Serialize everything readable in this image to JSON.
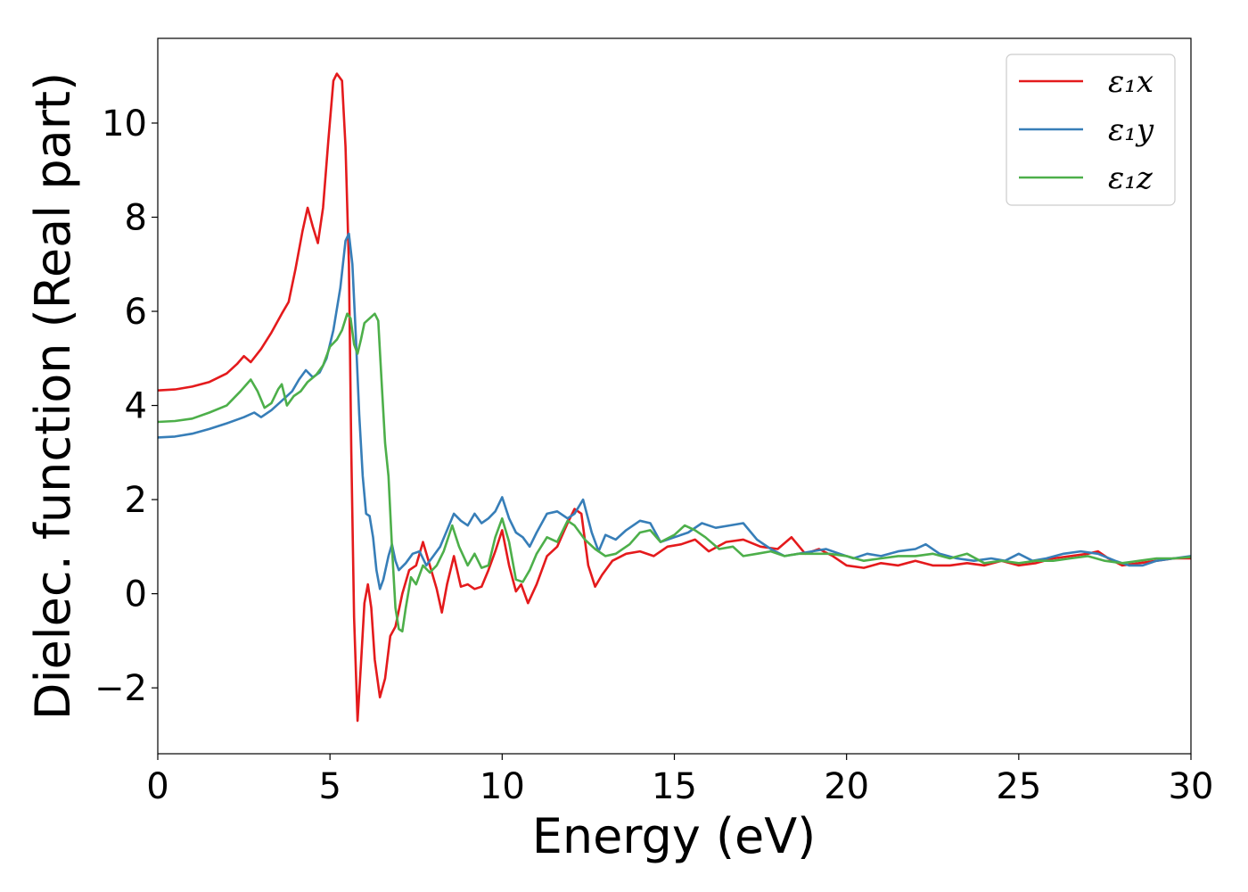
{
  "chart_data": {
    "type": "line",
    "xlabel": "Energy (eV)",
    "ylabel": "Dielec. function (Real part)",
    "xlim": [
      0,
      30
    ],
    "ylim": [
      -3.4,
      11.8
    ],
    "xticks": [
      0,
      5,
      10,
      15,
      20,
      25,
      30
    ],
    "xtick_labels": [
      "0",
      "5",
      "10",
      "15",
      "20",
      "25",
      "30"
    ],
    "yticks": [
      -2,
      0,
      2,
      4,
      6,
      8,
      10
    ],
    "ytick_labels": [
      "−2",
      "0",
      "2",
      "4",
      "6",
      "8",
      "10"
    ],
    "grid": false,
    "legend_position": "top-right",
    "series": [
      {
        "name": "ε₁x",
        "color": "#e41a1c",
        "points": [
          [
            0,
            4.32
          ],
          [
            0.5,
            4.34
          ],
          [
            1,
            4.4
          ],
          [
            1.5,
            4.5
          ],
          [
            2,
            4.68
          ],
          [
            2.3,
            4.88
          ],
          [
            2.5,
            5.05
          ],
          [
            2.7,
            4.92
          ],
          [
            3,
            5.2
          ],
          [
            3.3,
            5.55
          ],
          [
            3.6,
            5.95
          ],
          [
            3.8,
            6.2
          ],
          [
            4,
            6.9
          ],
          [
            4.2,
            7.7
          ],
          [
            4.35,
            8.2
          ],
          [
            4.5,
            7.8
          ],
          [
            4.65,
            7.45
          ],
          [
            4.8,
            8.2
          ],
          [
            4.95,
            9.6
          ],
          [
            5.1,
            10.9
          ],
          [
            5.2,
            11.05
          ],
          [
            5.35,
            10.9
          ],
          [
            5.45,
            9.5
          ],
          [
            5.55,
            7.0
          ],
          [
            5.62,
            3.0
          ],
          [
            5.7,
            -0.5
          ],
          [
            5.8,
            -2.7
          ],
          [
            5.9,
            -1.5
          ],
          [
            6.0,
            -0.2
          ],
          [
            6.1,
            0.2
          ],
          [
            6.2,
            -0.3
          ],
          [
            6.3,
            -1.4
          ],
          [
            6.45,
            -2.2
          ],
          [
            6.6,
            -1.8
          ],
          [
            6.75,
            -0.9
          ],
          [
            6.9,
            -0.7
          ],
          [
            7.1,
            0.0
          ],
          [
            7.3,
            0.5
          ],
          [
            7.5,
            0.6
          ],
          [
            7.7,
            1.1
          ],
          [
            7.9,
            0.6
          ],
          [
            8.1,
            0.1
          ],
          [
            8.25,
            -0.4
          ],
          [
            8.4,
            0.2
          ],
          [
            8.6,
            0.8
          ],
          [
            8.8,
            0.15
          ],
          [
            9.0,
            0.2
          ],
          [
            9.2,
            0.1
          ],
          [
            9.4,
            0.15
          ],
          [
            9.6,
            0.5
          ],
          [
            9.8,
            0.9
          ],
          [
            10.0,
            1.35
          ],
          [
            10.2,
            0.6
          ],
          [
            10.4,
            0.05
          ],
          [
            10.55,
            0.2
          ],
          [
            10.75,
            -0.2
          ],
          [
            11.0,
            0.2
          ],
          [
            11.3,
            0.8
          ],
          [
            11.6,
            1.0
          ],
          [
            11.9,
            1.5
          ],
          [
            12.1,
            1.8
          ],
          [
            12.3,
            1.7
          ],
          [
            12.5,
            0.6
          ],
          [
            12.7,
            0.15
          ],
          [
            12.9,
            0.4
          ],
          [
            13.2,
            0.7
          ],
          [
            13.6,
            0.85
          ],
          [
            14.0,
            0.9
          ],
          [
            14.4,
            0.8
          ],
          [
            14.8,
            1.0
          ],
          [
            15.2,
            1.05
          ],
          [
            15.6,
            1.15
          ],
          [
            16.0,
            0.9
          ],
          [
            16.5,
            1.1
          ],
          [
            17.0,
            1.15
          ],
          [
            17.5,
            1.0
          ],
          [
            18.0,
            0.95
          ],
          [
            18.4,
            1.2
          ],
          [
            18.8,
            0.85
          ],
          [
            19.2,
            0.95
          ],
          [
            19.6,
            0.8
          ],
          [
            20.0,
            0.6
          ],
          [
            20.5,
            0.55
          ],
          [
            21.0,
            0.65
          ],
          [
            21.5,
            0.6
          ],
          [
            22.0,
            0.7
          ],
          [
            22.5,
            0.6
          ],
          [
            23.0,
            0.6
          ],
          [
            23.5,
            0.65
          ],
          [
            24.0,
            0.6
          ],
          [
            24.5,
            0.7
          ],
          [
            25.0,
            0.6
          ],
          [
            25.5,
            0.65
          ],
          [
            26.0,
            0.75
          ],
          [
            26.5,
            0.8
          ],
          [
            27.0,
            0.85
          ],
          [
            27.3,
            0.9
          ],
          [
            27.6,
            0.75
          ],
          [
            28.0,
            0.6
          ],
          [
            28.5,
            0.65
          ],
          [
            29.0,
            0.7
          ],
          [
            29.5,
            0.75
          ],
          [
            30.0,
            0.75
          ]
        ]
      },
      {
        "name": "ε₁y",
        "color": "#377eb8",
        "points": [
          [
            0,
            3.32
          ],
          [
            0.5,
            3.34
          ],
          [
            1,
            3.4
          ],
          [
            1.5,
            3.5
          ],
          [
            2,
            3.62
          ],
          [
            2.5,
            3.75
          ],
          [
            2.8,
            3.85
          ],
          [
            3.0,
            3.75
          ],
          [
            3.3,
            3.9
          ],
          [
            3.6,
            4.1
          ],
          [
            3.9,
            4.3
          ],
          [
            4.1,
            4.55
          ],
          [
            4.3,
            4.75
          ],
          [
            4.5,
            4.6
          ],
          [
            4.7,
            4.7
          ],
          [
            4.9,
            5.0
          ],
          [
            5.1,
            5.6
          ],
          [
            5.3,
            6.5
          ],
          [
            5.45,
            7.5
          ],
          [
            5.55,
            7.65
          ],
          [
            5.65,
            7.0
          ],
          [
            5.75,
            5.5
          ],
          [
            5.85,
            3.8
          ],
          [
            5.95,
            2.5
          ],
          [
            6.05,
            1.7
          ],
          [
            6.15,
            1.65
          ],
          [
            6.25,
            1.2
          ],
          [
            6.35,
            0.5
          ],
          [
            6.45,
            0.1
          ],
          [
            6.55,
            0.3
          ],
          [
            6.7,
            0.8
          ],
          [
            6.8,
            1.05
          ],
          [
            6.9,
            0.7
          ],
          [
            7.0,
            0.5
          ],
          [
            7.2,
            0.65
          ],
          [
            7.4,
            0.85
          ],
          [
            7.6,
            0.9
          ],
          [
            7.8,
            0.6
          ],
          [
            8.0,
            0.8
          ],
          [
            8.2,
            1.0
          ],
          [
            8.4,
            1.35
          ],
          [
            8.6,
            1.7
          ],
          [
            8.8,
            1.55
          ],
          [
            9.0,
            1.45
          ],
          [
            9.2,
            1.7
          ],
          [
            9.4,
            1.5
          ],
          [
            9.6,
            1.6
          ],
          [
            9.8,
            1.75
          ],
          [
            10.0,
            2.05
          ],
          [
            10.2,
            1.6
          ],
          [
            10.4,
            1.3
          ],
          [
            10.6,
            1.2
          ],
          [
            10.8,
            1.0
          ],
          [
            11.0,
            1.3
          ],
          [
            11.3,
            1.7
          ],
          [
            11.6,
            1.75
          ],
          [
            11.9,
            1.6
          ],
          [
            12.1,
            1.7
          ],
          [
            12.35,
            2.0
          ],
          [
            12.6,
            1.3
          ],
          [
            12.8,
            0.9
          ],
          [
            13.0,
            1.25
          ],
          [
            13.3,
            1.15
          ],
          [
            13.6,
            1.35
          ],
          [
            14.0,
            1.55
          ],
          [
            14.3,
            1.5
          ],
          [
            14.6,
            1.1
          ],
          [
            15.0,
            1.2
          ],
          [
            15.4,
            1.3
          ],
          [
            15.8,
            1.5
          ],
          [
            16.2,
            1.4
          ],
          [
            16.6,
            1.45
          ],
          [
            17.0,
            1.5
          ],
          [
            17.4,
            1.15
          ],
          [
            17.8,
            0.95
          ],
          [
            18.2,
            0.8
          ],
          [
            18.6,
            0.85
          ],
          [
            19.0,
            0.9
          ],
          [
            19.4,
            0.95
          ],
          [
            19.8,
            0.85
          ],
          [
            20.2,
            0.75
          ],
          [
            20.6,
            0.85
          ],
          [
            21.0,
            0.8
          ],
          [
            21.5,
            0.9
          ],
          [
            22.0,
            0.95
          ],
          [
            22.3,
            1.05
          ],
          [
            22.7,
            0.85
          ],
          [
            23.2,
            0.75
          ],
          [
            23.7,
            0.7
          ],
          [
            24.2,
            0.75
          ],
          [
            24.6,
            0.7
          ],
          [
            25.0,
            0.85
          ],
          [
            25.4,
            0.7
          ],
          [
            25.8,
            0.75
          ],
          [
            26.3,
            0.85
          ],
          [
            26.8,
            0.9
          ],
          [
            27.3,
            0.85
          ],
          [
            27.8,
            0.7
          ],
          [
            28.2,
            0.6
          ],
          [
            28.6,
            0.6
          ],
          [
            29.0,
            0.7
          ],
          [
            29.5,
            0.75
          ],
          [
            30.0,
            0.8
          ]
        ]
      },
      {
        "name": "ε₁z",
        "color": "#4daf4a",
        "points": [
          [
            0,
            3.65
          ],
          [
            0.5,
            3.67
          ],
          [
            1,
            3.72
          ],
          [
            1.5,
            3.85
          ],
          [
            2,
            4.0
          ],
          [
            2.4,
            4.3
          ],
          [
            2.7,
            4.55
          ],
          [
            2.9,
            4.3
          ],
          [
            3.1,
            3.95
          ],
          [
            3.3,
            4.05
          ],
          [
            3.5,
            4.35
          ],
          [
            3.6,
            4.45
          ],
          [
            3.75,
            4.0
          ],
          [
            3.95,
            4.2
          ],
          [
            4.15,
            4.3
          ],
          [
            4.35,
            4.5
          ],
          [
            4.6,
            4.65
          ],
          [
            4.8,
            4.85
          ],
          [
            5.0,
            5.25
          ],
          [
            5.2,
            5.4
          ],
          [
            5.35,
            5.6
          ],
          [
            5.5,
            5.95
          ],
          [
            5.6,
            5.85
          ],
          [
            5.7,
            5.3
          ],
          [
            5.8,
            5.1
          ],
          [
            5.9,
            5.4
          ],
          [
            6.0,
            5.75
          ],
          [
            6.15,
            5.85
          ],
          [
            6.3,
            5.95
          ],
          [
            6.4,
            5.8
          ],
          [
            6.5,
            4.5
          ],
          [
            6.6,
            3.2
          ],
          [
            6.7,
            2.5
          ],
          [
            6.8,
            1.0
          ],
          [
            6.9,
            -0.3
          ],
          [
            7.0,
            -0.75
          ],
          [
            7.1,
            -0.8
          ],
          [
            7.2,
            -0.3
          ],
          [
            7.35,
            0.35
          ],
          [
            7.5,
            0.2
          ],
          [
            7.7,
            0.6
          ],
          [
            7.9,
            0.45
          ],
          [
            8.1,
            0.6
          ],
          [
            8.3,
            0.9
          ],
          [
            8.55,
            1.45
          ],
          [
            8.75,
            1.0
          ],
          [
            9.0,
            0.6
          ],
          [
            9.2,
            0.85
          ],
          [
            9.4,
            0.55
          ],
          [
            9.6,
            0.6
          ],
          [
            9.8,
            1.2
          ],
          [
            10.0,
            1.6
          ],
          [
            10.2,
            1.1
          ],
          [
            10.4,
            0.3
          ],
          [
            10.6,
            0.25
          ],
          [
            10.8,
            0.5
          ],
          [
            11.0,
            0.85
          ],
          [
            11.3,
            1.2
          ],
          [
            11.6,
            1.1
          ],
          [
            11.9,
            1.55
          ],
          [
            12.1,
            1.45
          ],
          [
            12.4,
            1.15
          ],
          [
            12.7,
            0.95
          ],
          [
            13.0,
            0.8
          ],
          [
            13.3,
            0.85
          ],
          [
            13.7,
            1.05
          ],
          [
            14.0,
            1.3
          ],
          [
            14.3,
            1.35
          ],
          [
            14.6,
            1.1
          ],
          [
            15.0,
            1.25
          ],
          [
            15.3,
            1.45
          ],
          [
            15.6,
            1.35
          ],
          [
            15.9,
            1.2
          ],
          [
            16.3,
            0.95
          ],
          [
            16.7,
            1.0
          ],
          [
            17.0,
            0.8
          ],
          [
            17.4,
            0.85
          ],
          [
            17.8,
            0.9
          ],
          [
            18.2,
            0.8
          ],
          [
            18.6,
            0.85
          ],
          [
            19.0,
            0.85
          ],
          [
            19.5,
            0.85
          ],
          [
            20.0,
            0.8
          ],
          [
            20.5,
            0.7
          ],
          [
            21.0,
            0.75
          ],
          [
            21.5,
            0.8
          ],
          [
            22.0,
            0.8
          ],
          [
            22.5,
            0.85
          ],
          [
            23.0,
            0.75
          ],
          [
            23.5,
            0.85
          ],
          [
            24.0,
            0.65
          ],
          [
            24.5,
            0.7
          ],
          [
            25.0,
            0.65
          ],
          [
            25.5,
            0.7
          ],
          [
            26.0,
            0.7
          ],
          [
            26.5,
            0.75
          ],
          [
            27.0,
            0.8
          ],
          [
            27.5,
            0.7
          ],
          [
            28.0,
            0.65
          ],
          [
            28.5,
            0.7
          ],
          [
            29.0,
            0.75
          ],
          [
            29.5,
            0.75
          ],
          [
            30.0,
            0.78
          ]
        ]
      }
    ]
  }
}
